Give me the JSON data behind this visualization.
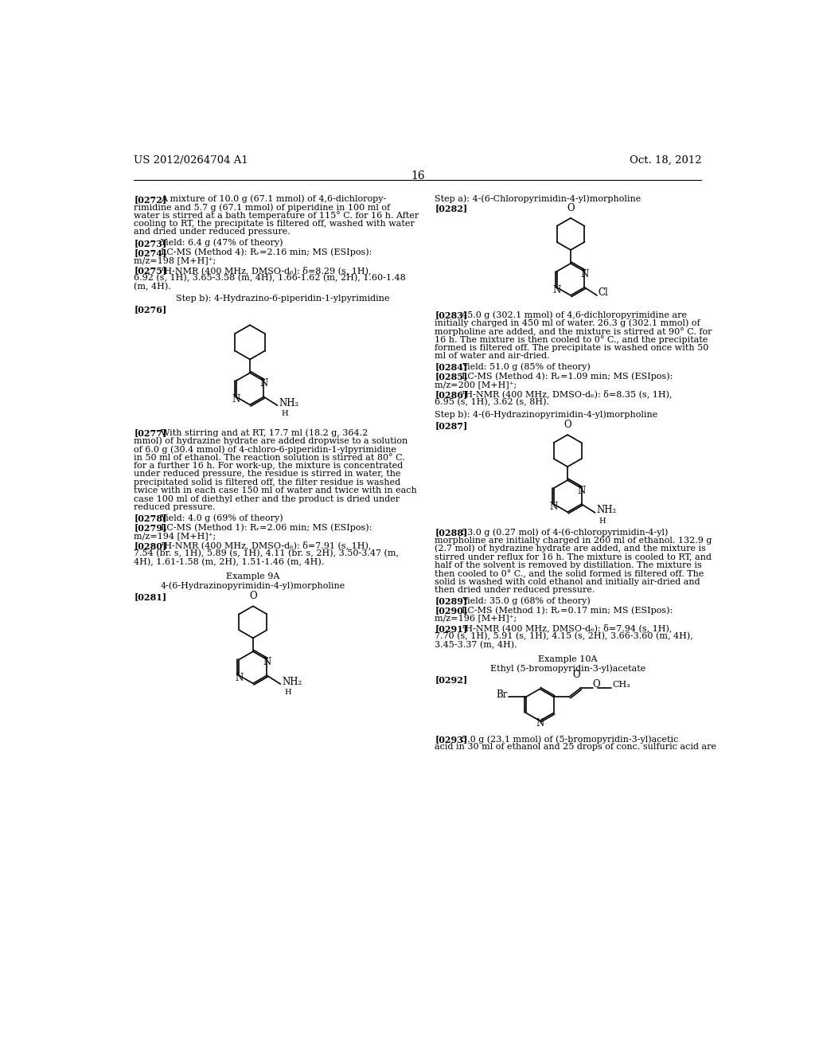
{
  "background_color": "#ffffff",
  "page_number": "16",
  "header_left": "US 2012/0264704 A1",
  "header_right": "Oct. 18, 2012"
}
